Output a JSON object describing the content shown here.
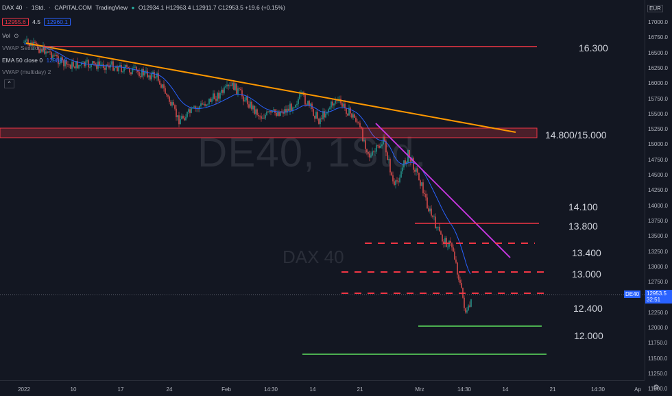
{
  "header": {
    "symbol": "DAX 40",
    "interval": "1Std.",
    "exchange": "CAPITALCOM",
    "platform": "TradingView",
    "ohlc": "O12934.1  H12963.4  L12911.7  C12953.5  +19.6 (+0.15%)",
    "sell_price": "12955.6",
    "spread": "4.5",
    "buy_price": "12960.1"
  },
  "indicators": {
    "vol": "Vol",
    "vwap_session": "VWAP Session hlc3",
    "ema": "EMA 50 close 0",
    "ema_value": "12989.9",
    "vwap_multiday": "VWAP (multiday) 2"
  },
  "watermark": {
    "big": "DE40, 1Std.",
    "small": "DAX 40"
  },
  "currency": "EUR",
  "levels": [
    "16.300",
    "14.800/15.000",
    "14.100",
    "13.800",
    "13.400",
    "13.000",
    "12.400",
    "12.000"
  ],
  "price_ticks": [
    "17000.0",
    "16750.0",
    "16500.0",
    "16250.0",
    "16000.0",
    "15750.0",
    "15500.0",
    "15250.0",
    "15000.0",
    "14750.0",
    "14500.0",
    "14250.0",
    "14000.0",
    "13750.0",
    "13500.0",
    "13250.0",
    "13000.0",
    "12750.0",
    "12500.0",
    "12250.0",
    "12000.0",
    "11750.0",
    "11500.0",
    "11250.0",
    "11000.0"
  ],
  "time_ticks": [
    "2022",
    "10",
    "17",
    "24",
    "Feb",
    "14:30",
    "14",
    "21",
    "Mrz",
    "14:30",
    "14",
    "21",
    "14:30",
    "Ap"
  ],
  "last_price": {
    "symbol": "DE40",
    "price": "12953.5",
    "countdown": "32:51"
  },
  "colors": {
    "background": "#131722",
    "trendline": "#ff9800",
    "resistance": "#f23645",
    "support": "#4caf50",
    "channel": "#9c27b0",
    "ema": "#2962ff",
    "price_tag": "#2962ff"
  }
}
